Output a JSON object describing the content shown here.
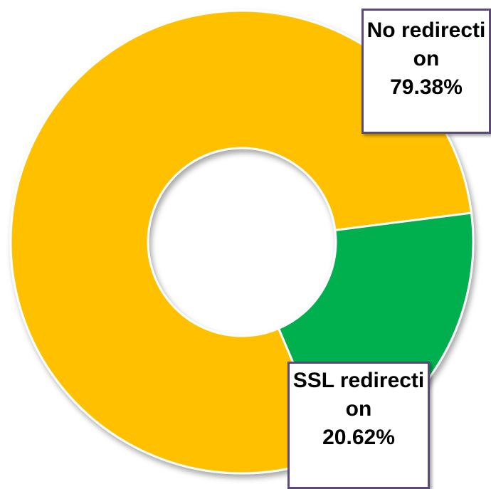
{
  "chart_data": {
    "type": "pie",
    "variant": "donut",
    "title": "",
    "categories": [
      "No redirection",
      "SSL redirection"
    ],
    "values": [
      79.38,
      20.62
    ],
    "unit": "%",
    "colors": [
      "#ffc000",
      "#00b050"
    ],
    "data_labels": [
      {
        "name": "No redirection",
        "value": "79.38%"
      },
      {
        "name": "SSL redirection",
        "value": "20.62%"
      }
    ],
    "legend": "none",
    "label_style": "callout-box"
  },
  "colors": {
    "callout_border": "#5b4a78",
    "slice_stroke": "#ffffff"
  }
}
